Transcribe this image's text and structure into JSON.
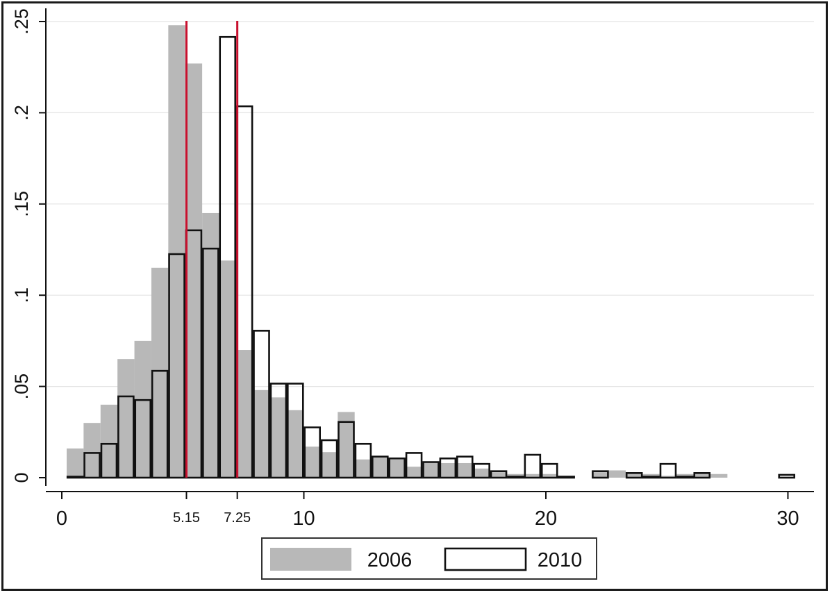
{
  "chart_data": {
    "type": "bar",
    "bin_width": 0.7,
    "x_range": [
      0,
      31
    ],
    "y_range": [
      0,
      0.25
    ],
    "x_ticks": [
      {
        "value": 0,
        "label": "0",
        "small": false
      },
      {
        "value": 5.15,
        "label": "5.15",
        "small": true
      },
      {
        "value": 7.25,
        "label": "7.25",
        "small": true
      },
      {
        "value": 10,
        "label": "10",
        "small": false
      },
      {
        "value": 20,
        "label": "20",
        "small": false
      },
      {
        "value": 30,
        "label": "30",
        "small": false
      }
    ],
    "y_ticks": [
      {
        "value": 0,
        "label": "0"
      },
      {
        "value": 0.05,
        "label": ".05"
      },
      {
        "value": 0.1,
        "label": ".1"
      },
      {
        "value": 0.15,
        "label": ".15"
      },
      {
        "value": 0.2,
        "label": ".2"
      },
      {
        "value": 0.25,
        "label": ".25"
      }
    ],
    "grid": "horizontal",
    "reference_lines": [
      5.15,
      7.25
    ],
    "legend_position": "bottom-center",
    "series": [
      {
        "name": "2006",
        "style": "filled",
        "color": "#b8b8b8",
        "bins": [
          {
            "x": 0.2,
            "y": 0.016
          },
          {
            "x": 0.9,
            "y": 0.03
          },
          {
            "x": 1.6,
            "y": 0.04
          },
          {
            "x": 2.3,
            "y": 0.065
          },
          {
            "x": 3.0,
            "y": 0.075
          },
          {
            "x": 3.7,
            "y": 0.115
          },
          {
            "x": 4.4,
            "y": 0.248
          },
          {
            "x": 5.1,
            "y": 0.227
          },
          {
            "x": 5.8,
            "y": 0.145
          },
          {
            "x": 6.5,
            "y": 0.119
          },
          {
            "x": 7.2,
            "y": 0.07
          },
          {
            "x": 7.9,
            "y": 0.048
          },
          {
            "x": 8.6,
            "y": 0.044
          },
          {
            "x": 9.3,
            "y": 0.037
          },
          {
            "x": 10.0,
            "y": 0.017
          },
          {
            "x": 10.7,
            "y": 0.014
          },
          {
            "x": 11.4,
            "y": 0.036
          },
          {
            "x": 12.1,
            "y": 0.01
          },
          {
            "x": 12.8,
            "y": 0.012
          },
          {
            "x": 13.5,
            "y": 0.01
          },
          {
            "x": 14.2,
            "y": 0.006
          },
          {
            "x": 14.9,
            "y": 0.008
          },
          {
            "x": 15.6,
            "y": 0.008
          },
          {
            "x": 16.3,
            "y": 0.008
          },
          {
            "x": 17.0,
            "y": 0.005
          },
          {
            "x": 17.7,
            "y": 0.003
          },
          {
            "x": 18.4,
            "y": 0.002
          },
          {
            "x": 19.1,
            "y": 0.002
          },
          {
            "x": 19.8,
            "y": 0.002
          },
          {
            "x": 20.5,
            "y": 0.001
          },
          {
            "x": 21.9,
            "y": 0.003
          },
          {
            "x": 22.6,
            "y": 0.004
          },
          {
            "x": 23.3,
            "y": 0.003
          },
          {
            "x": 24.0,
            "y": 0.002
          },
          {
            "x": 24.7,
            "y": 0.001
          },
          {
            "x": 25.4,
            "y": 0.002
          },
          {
            "x": 26.1,
            "y": 0.003
          },
          {
            "x": 26.8,
            "y": 0.002
          }
        ]
      },
      {
        "name": "2010",
        "style": "outline",
        "color": "#111111",
        "bins": [
          {
            "x": 0.2,
            "y": 0.001
          },
          {
            "x": 0.9,
            "y": 0.014
          },
          {
            "x": 1.6,
            "y": 0.019
          },
          {
            "x": 2.3,
            "y": 0.045
          },
          {
            "x": 3.0,
            "y": 0.043
          },
          {
            "x": 3.7,
            "y": 0.059
          },
          {
            "x": 4.4,
            "y": 0.123
          },
          {
            "x": 5.1,
            "y": 0.136
          },
          {
            "x": 5.8,
            "y": 0.126
          },
          {
            "x": 6.5,
            "y": 0.242
          },
          {
            "x": 7.2,
            "y": 0.204
          },
          {
            "x": 7.9,
            "y": 0.081
          },
          {
            "x": 8.6,
            "y": 0.052
          },
          {
            "x": 9.3,
            "y": 0.052
          },
          {
            "x": 10.0,
            "y": 0.028
          },
          {
            "x": 10.7,
            "y": 0.021
          },
          {
            "x": 11.4,
            "y": 0.031
          },
          {
            "x": 12.1,
            "y": 0.019
          },
          {
            "x": 12.8,
            "y": 0.012
          },
          {
            "x": 13.5,
            "y": 0.011
          },
          {
            "x": 14.2,
            "y": 0.014
          },
          {
            "x": 14.9,
            "y": 0.009
          },
          {
            "x": 15.6,
            "y": 0.011
          },
          {
            "x": 16.3,
            "y": 0.012
          },
          {
            "x": 17.0,
            "y": 0.008
          },
          {
            "x": 17.7,
            "y": 0.004
          },
          {
            "x": 18.4,
            "y": 0.001
          },
          {
            "x": 19.1,
            "y": 0.013
          },
          {
            "x": 19.8,
            "y": 0.008
          },
          {
            "x": 20.5,
            "y": 0.001
          },
          {
            "x": 21.9,
            "y": 0.004
          },
          {
            "x": 23.3,
            "y": 0.003
          },
          {
            "x": 24.0,
            "y": 0.001
          },
          {
            "x": 24.7,
            "y": 0.008
          },
          {
            "x": 25.4,
            "y": 0.001
          },
          {
            "x": 26.1,
            "y": 0.003
          },
          {
            "x": 29.6,
            "y": 0.002
          }
        ]
      }
    ]
  }
}
